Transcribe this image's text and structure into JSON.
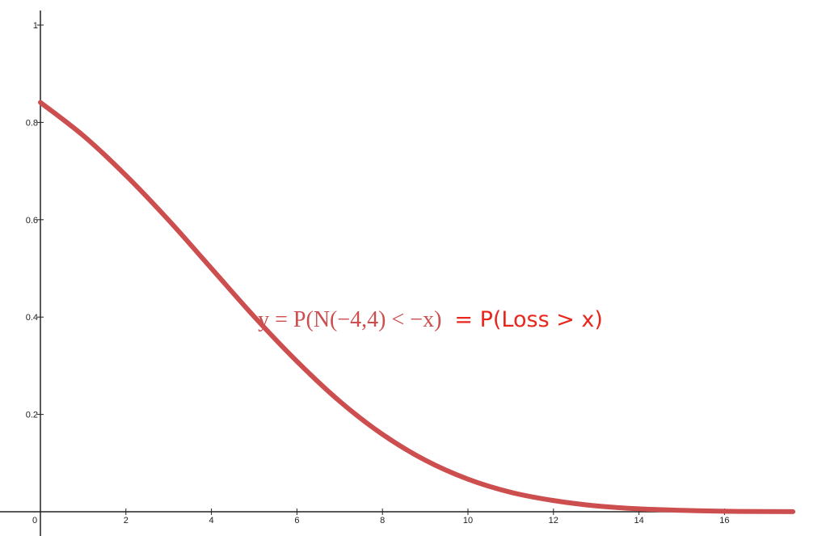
{
  "chart_data": {
    "type": "line",
    "title": "",
    "xlabel": "",
    "ylabel": "",
    "xlim": [
      0,
      17.6
    ],
    "ylim": [
      0,
      1.03
    ],
    "x_ticks": [
      0,
      2,
      4,
      6,
      8,
      10,
      12,
      14,
      16
    ],
    "y_ticks": [
      0.2,
      0.4,
      0.6,
      0.8,
      1
    ],
    "x_tick_labels": [
      "0",
      "2",
      "4",
      "6",
      "8",
      "10",
      "12",
      "14",
      "16"
    ],
    "y_tick_labels": [
      "0.2",
      "0.4",
      "0.6",
      "0.8",
      "1"
    ],
    "grid": false,
    "series": [
      {
        "color": "#cc4e4e",
        "x": [
          0,
          1,
          2,
          3,
          4,
          5,
          6,
          7,
          8,
          9,
          10,
          11,
          12,
          13,
          14,
          15,
          16,
          17,
          17.6
        ],
        "y": [
          0.841,
          0.773,
          0.691,
          0.599,
          0.5,
          0.401,
          0.309,
          0.227,
          0.159,
          0.106,
          0.067,
          0.04,
          0.023,
          0.012,
          0.006,
          0.003,
          0.001,
          0.0005,
          0.0003
        ]
      }
    ],
    "annotation": {
      "math_text": "y = P(N(−4,4) < −x)",
      "plain_text": "= P(Loss > x)",
      "math_color": "#cc4e4e",
      "plain_color": "#e8261c",
      "x": 5.05,
      "y": 0.38
    }
  }
}
